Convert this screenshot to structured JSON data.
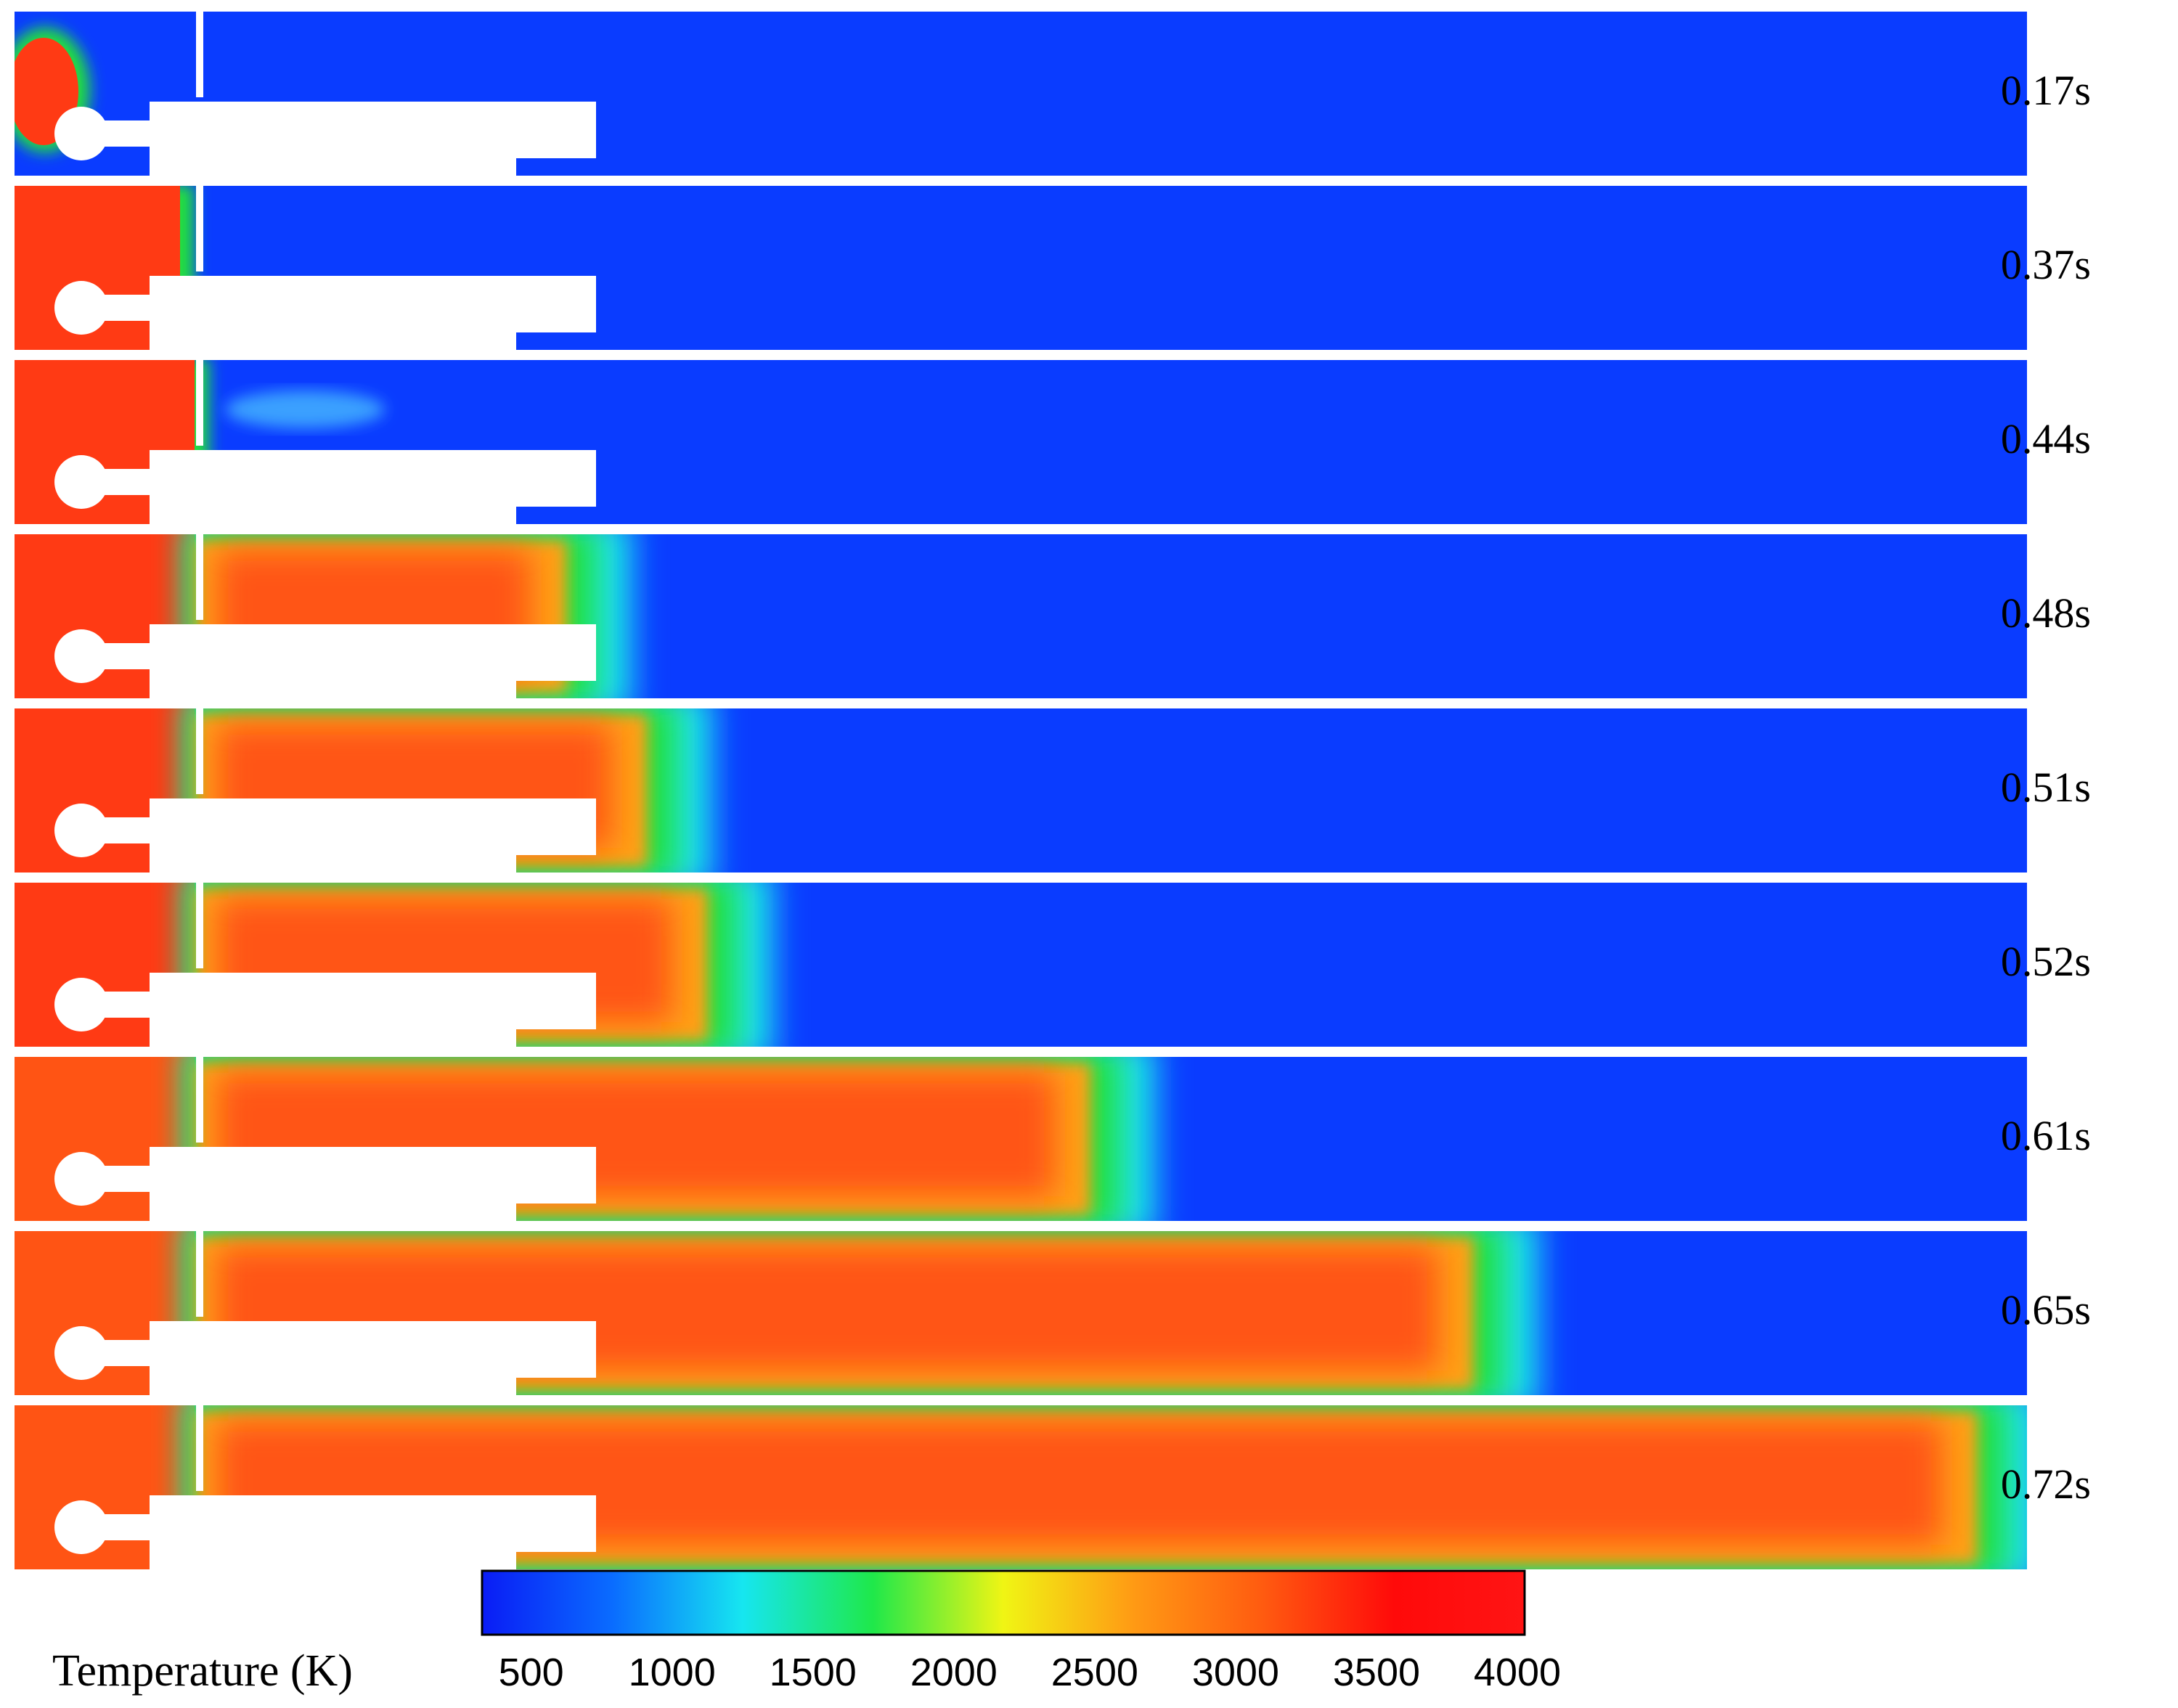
{
  "frames": [
    {
      "time": "0.17s",
      "front": 0.0
    },
    {
      "time": "0.37s",
      "front": 0.0
    },
    {
      "time": "0.44s",
      "front": 0.02
    },
    {
      "time": "0.48s",
      "front": 0.3
    },
    {
      "time": "0.51s",
      "front": 0.34
    },
    {
      "time": "0.52s",
      "front": 0.37
    },
    {
      "time": "0.61s",
      "front": 0.56
    },
    {
      "time": "0.65s",
      "front": 0.75
    },
    {
      "time": "0.72s",
      "front": 1.0
    }
  ],
  "colorbar": {
    "title": "Temperature (K)",
    "ticks": [
      "500",
      "1000",
      "1500",
      "2000",
      "2500",
      "3000",
      "3500",
      "4000"
    ],
    "range": [
      300,
      4000
    ],
    "colors": [
      "#0a1cf5",
      "#0a6cff",
      "#16e6f0",
      "#1fe84a",
      "#f0f514",
      "#ff9a14",
      "#ff5a10",
      "#ff0a0a",
      "#ff1414"
    ]
  },
  "colors": {
    "cold": "#0a3cff",
    "hot": "#ff5414",
    "hot_core": "#ff3a14",
    "warm": "#ffa014",
    "front_green": "#22e03c",
    "front_cyan": "#1ae4f0",
    "solid": "#ffffff"
  }
}
